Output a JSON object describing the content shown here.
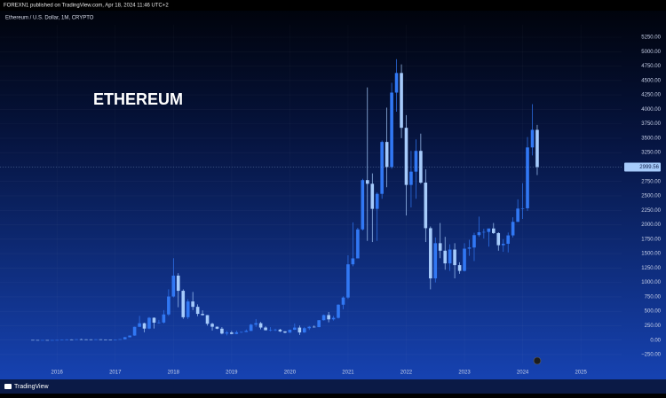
{
  "header": "FOREXN1 published on TradingView.com, Apr 18, 2024 11:46 UTC+2",
  "footer": "TradingView",
  "chart_data": {
    "type": "candlestick",
    "title": "Ethereum / U.S. Dollar, 1M, CRYPTO",
    "annotation": "ETHEREUM",
    "up_color": "#3178f4",
    "down_color": "#a6cbfb",
    "last_price": 2999.56,
    "xlim": [
      2015.02,
      2025.7
    ],
    "xticks": [
      2016,
      2017,
      2018,
      2019,
      2020,
      2021,
      2022,
      2023,
      2024,
      2025
    ],
    "ylim": [
      -404,
      5465
    ],
    "yticks": [
      {
        "value": -250,
        "label": "−250.00"
      },
      {
        "value": 0,
        "label": "0.00"
      },
      {
        "value": 250,
        "label": "250.00"
      },
      {
        "value": 500,
        "label": "500.00"
      },
      {
        "value": 750,
        "label": "750.00"
      },
      {
        "value": 1000,
        "label": "1000.00"
      },
      {
        "value": 1250,
        "label": "1250.00"
      },
      {
        "value": 1500,
        "label": "1500.00"
      },
      {
        "value": 1750,
        "label": "1750.00"
      },
      {
        "value": 2000,
        "label": "2000.00"
      },
      {
        "value": 2250,
        "label": "2250.00"
      },
      {
        "value": 2500,
        "label": "2500.00"
      },
      {
        "value": 2750,
        "label": "2750.00"
      },
      {
        "value": 3000,
        "label": "3000.00"
      },
      {
        "value": 3250,
        "label": "3250.00"
      },
      {
        "value": 3500,
        "label": "3500.00"
      },
      {
        "value": 3750,
        "label": "3750.00"
      },
      {
        "value": 4000,
        "label": "4000.00"
      },
      {
        "value": 4250,
        "label": "4250.00"
      },
      {
        "value": 4500,
        "label": "4500.00"
      },
      {
        "value": 4750,
        "label": "4750.00"
      },
      {
        "value": 5000,
        "label": "5000.00"
      },
      {
        "value": 5250,
        "label": "5250.00"
      }
    ],
    "x": [
      2015.583,
      2015.667,
      2015.75,
      2015.833,
      2015.917,
      2016,
      2016.083,
      2016.167,
      2016.25,
      2016.333,
      2016.417,
      2016.5,
      2016.583,
      2016.667,
      2016.75,
      2016.833,
      2016.917,
      2017,
      2017.083,
      2017.167,
      2017.25,
      2017.333,
      2017.417,
      2017.5,
      2017.583,
      2017.667,
      2017.75,
      2017.833,
      2017.917,
      2018,
      2018.083,
      2018.167,
      2018.25,
      2018.333,
      2018.417,
      2018.5,
      2018.583,
      2018.667,
      2018.75,
      2018.833,
      2018.917,
      2019,
      2019.083,
      2019.167,
      2019.25,
      2019.333,
      2019.417,
      2019.5,
      2019.583,
      2019.667,
      2019.75,
      2019.833,
      2019.917,
      2020,
      2020.083,
      2020.167,
      2020.25,
      2020.333,
      2020.417,
      2020.5,
      2020.583,
      2020.667,
      2020.75,
      2020.833,
      2020.917,
      2021,
      2021.083,
      2021.167,
      2021.25,
      2021.333,
      2021.417,
      2021.5,
      2021.583,
      2021.667,
      2021.75,
      2021.833,
      2021.917,
      2022,
      2022.083,
      2022.167,
      2022.25,
      2022.333,
      2022.417,
      2022.5,
      2022.583,
      2022.667,
      2022.75,
      2022.833,
      2022.917,
      2023,
      2023.083,
      2023.167,
      2023.25,
      2023.333,
      2023.417,
      2023.5,
      2023.583,
      2023.667,
      2023.75,
      2023.833,
      2023.917,
      2024,
      2024.083,
      2024.167,
      2024.25
    ],
    "open": [
      2.8,
      1.35,
      0.7,
      0.9,
      0.87,
      0.93,
      2.2,
      6.2,
      11.4,
      8.8,
      14,
      12.5,
      12.4,
      11.2,
      13.2,
      11.1,
      8.6,
      8,
      10.7,
      15.7,
      50,
      79,
      230,
      292,
      200,
      387,
      303,
      305,
      445,
      756,
      1118,
      855,
      397,
      670,
      577,
      455,
      433,
      283,
      232,
      198,
      114,
      133,
      107,
      136,
      141,
      160,
      268,
      293,
      218,
      172,
      180,
      182,
      151,
      130,
      180,
      217,
      133,
      206,
      231,
      225,
      345,
      434,
      360,
      386,
      614,
      738,
      1314,
      1417,
      1919,
      2773,
      2710,
      2275,
      2535,
      3435,
      3000,
      4290,
      4630,
      3680,
      2690,
      2920,
      3280,
      2730,
      1940,
      1070,
      1680,
      1550,
      1330,
      1570,
      1300,
      1200,
      1585,
      1605,
      1820,
      1870,
      1875,
      1935,
      1855,
      1645,
      1670,
      1815,
      2050,
      2280,
      2285,
      3340,
      3645
    ],
    "high": [
      3,
      1.4,
      1.2,
      1,
      1,
      2.2,
      6.5,
      15.2,
      12.5,
      14.7,
      21.5,
      14.8,
      12.5,
      14.1,
      13.3,
      11.4,
      9,
      11.3,
      16,
      53,
      80,
      231,
      420,
      300,
      400,
      395,
      350,
      520,
      880,
      1420,
      1160,
      880,
      710,
      835,
      620,
      515,
      435,
      300,
      235,
      225,
      162,
      160,
      165,
      145,
      185,
      282,
      365,
      315,
      239,
      224,
      197,
      195,
      154,
      184,
      288,
      253,
      228,
      245,
      253,
      347,
      443,
      488,
      420,
      622,
      758,
      1470,
      2040,
      1946,
      2797,
      4380,
      2890,
      2560,
      3460,
      4030,
      4460,
      4870,
      4780,
      3900,
      3280,
      3480,
      3580,
      2960,
      1970,
      1780,
      2030,
      1790,
      1660,
      1680,
      1350,
      1680,
      1740,
      1860,
      2140,
      1930,
      1930,
      2030,
      1870,
      1750,
      1865,
      2130,
      2440,
      2720,
      3520,
      4090,
      3730
    ],
    "low": [
      0.5,
      0.6,
      0.4,
      0.8,
      0.8,
      0.9,
      2.1,
      6,
      6.9,
      8.5,
      11,
      10.4,
      10,
      11,
      10.8,
      8.9,
      7,
      8,
      10.4,
      15.2,
      47,
      77,
      230,
      135,
      190,
      200,
      286,
      290,
      420,
      740,
      570,
      369,
      365,
      520,
      415,
      425,
      250,
      167,
      190,
      101,
      82,
      101,
      102,
      127,
      140,
      158,
      230,
      188,
      168,
      153,
      156,
      140,
      118,
      127,
      175,
      90,
      125,
      176,
      217,
      224,
      340,
      308,
      340,
      374,
      535,
      714,
      1280,
      1430,
      1900,
      1720,
      1700,
      1720,
      2450,
      2650,
      2970,
      3960,
      3500,
      2160,
      2300,
      2450,
      2710,
      1700,
      880,
      1000,
      1420,
      1220,
      1200,
      1070,
      1150,
      1190,
      1460,
      1370,
      1790,
      1760,
      1620,
      1840,
      1550,
      1530,
      1520,
      1780,
      2050,
      2100,
      2240,
      3200,
      2860
    ],
    "close": [
      1.35,
      0.7,
      0.9,
      0.87,
      0.93,
      2.2,
      6.2,
      11.4,
      8.8,
      14,
      12.5,
      12.4,
      11.2,
      13.2,
      11.1,
      8.6,
      8,
      10.7,
      15.7,
      50,
      79,
      230,
      292,
      200,
      387,
      303,
      305,
      445,
      756,
      1118,
      855,
      397,
      670,
      577,
      455,
      433,
      283,
      232,
      198,
      114,
      133,
      107,
      136,
      141,
      160,
      268,
      293,
      218,
      172,
      180,
      182,
      151,
      130,
      180,
      217,
      133,
      206,
      231,
      225,
      345,
      434,
      360,
      386,
      614,
      738,
      1314,
      1417,
      1919,
      2773,
      2710,
      2275,
      2535,
      3435,
      3000,
      4290,
      4630,
      3680,
      2690,
      2920,
      3280,
      2730,
      1940,
      1070,
      1680,
      1550,
      1330,
      1570,
      1300,
      1200,
      1585,
      1605,
      1820,
      1870,
      1875,
      1935,
      1855,
      1645,
      1670,
      1815,
      2050,
      2280,
      2285,
      3340,
      3645,
      2999.56
    ]
  }
}
